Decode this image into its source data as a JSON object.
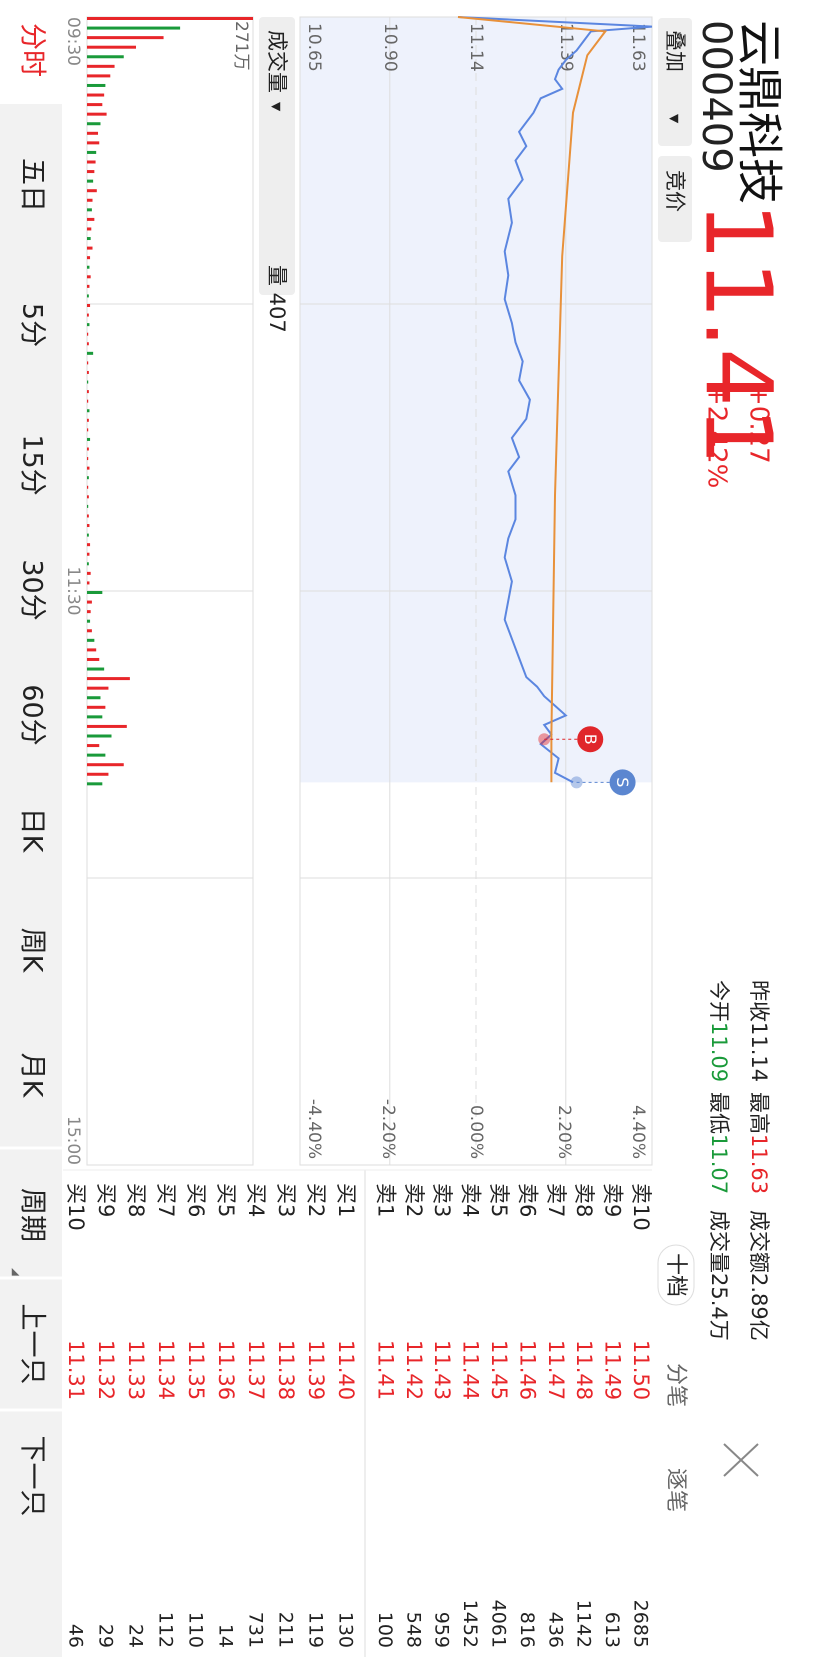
{
  "header": {
    "name": "云鼎科技",
    "code": "000409",
    "price": "11.41",
    "change": "+0.27",
    "change_pct": "+2.42%"
  },
  "stats": [
    {
      "label": "昨收",
      "value": "11.14",
      "color": "#222222"
    },
    {
      "label": "最高",
      "value": "11.63",
      "color": "#e8262a"
    },
    {
      "label": "成交额",
      "value": "2.89亿",
      "color": "#222222"
    },
    {
      "label": "今开",
      "value": "11.09",
      "color": "#1a9a3a"
    },
    {
      "label": "最低",
      "value": "11.07",
      "color": "#1a9a3a"
    },
    {
      "label": "成交量",
      "value": "25.4万",
      "color": "#222222"
    }
  ],
  "controls": {
    "overlay": "叠加",
    "auction": "竞价",
    "volume": "成交量",
    "volume_value": "量 407"
  },
  "chart_data": [
    {
      "type": "line",
      "ylim": [
        10.65,
        11.63
      ],
      "yticks": [
        11.63,
        11.39,
        11.14,
        {
          "value": 10.9,
          "label": "10.90"
        },
        10.65
      ],
      "y2lim": [
        -4.4,
        4.4
      ],
      "y2ticks": [
        {
          "value": 4.4,
          "label": "4.40%"
        },
        {
          "value": 2.2,
          "label": "2.20%"
        },
        {
          "value": 0,
          "label": "0.00%"
        },
        {
          "value": -2.2,
          "label": "-2.20%"
        },
        {
          "value": -4.4,
          "label": "-4.40%"
        }
      ],
      "xlim": [
        0,
        240
      ],
      "xticks": [
        {
          "value": 0,
          "label": "09:30"
        },
        {
          "value": 120,
          "label": "11:30"
        },
        {
          "value": 240,
          "label": "15:00"
        }
      ],
      "grid": true,
      "series": [
        {
          "color": "#5b86e0",
          "x": [
            0,
            2,
            3,
            5,
            7,
            9,
            11,
            13,
            15,
            17,
            20,
            24,
            27,
            30,
            34,
            38,
            43,
            49,
            54,
            59,
            64,
            68,
            72,
            76,
            80,
            84,
            88,
            92,
            95,
            100,
            105,
            109,
            113,
            118,
            122,
            126,
            130,
            134,
            138,
            140,
            142,
            144,
            146,
            148,
            150,
            152,
            155,
            158,
            160
          ],
          "values": [
            11.09,
            11.63,
            11.46,
            11.44,
            11.42,
            11.39,
            11.37,
            11.36,
            11.38,
            11.32,
            11.3,
            11.26,
            11.28,
            11.25,
            11.27,
            11.23,
            11.24,
            11.22,
            11.23,
            11.22,
            11.24,
            11.25,
            11.27,
            11.26,
            11.29,
            11.28,
            11.24,
            11.26,
            11.23,
            11.25,
            11.25,
            11.23,
            11.22,
            11.24,
            11.23,
            11.22,
            11.24,
            11.26,
            11.28,
            11.31,
            11.33,
            11.36,
            11.39,
            11.33,
            11.35,
            11.32,
            11.37,
            11.36,
            11.41
          ]
        },
        {
          "color": "#e8913a",
          "x": [
            0,
            3,
            8,
            20,
            50,
            100,
            150,
            160
          ],
          "values": [
            11.09,
            11.5,
            11.45,
            11.41,
            11.38,
            11.36,
            11.35,
            11.35
          ]
        }
      ],
      "annotations": [
        {
          "label": "B",
          "x": 151,
          "y": 11.33,
          "color": "#e0262a"
        },
        {
          "label": "S",
          "x": 160,
          "y": 11.42,
          "color": "#5b86d0"
        }
      ]
    },
    {
      "type": "bar",
      "ylim": [
        0,
        271
      ],
      "yticks": [
        {
          "value": 271,
          "label": "271万"
        }
      ],
      "xlim": [
        0,
        240
      ],
      "x": [
        0,
        2,
        4,
        6,
        8,
        10,
        12,
        14,
        16,
        18,
        20,
        22,
        24,
        26,
        28,
        30,
        32,
        34,
        36,
        38,
        40,
        42,
        44,
        46,
        48,
        50,
        52,
        54,
        56,
        58,
        60,
        62,
        64,
        66,
        68,
        70,
        72,
        74,
        76,
        78,
        80,
        82,
        84,
        86,
        88,
        90,
        92,
        94,
        96,
        98,
        100,
        102,
        104,
        106,
        108,
        110,
        112,
        114,
        116,
        118,
        120,
        122,
        124,
        126,
        128,
        130,
        132,
        134,
        136,
        138,
        140,
        142,
        144,
        146,
        148,
        150,
        152,
        154,
        156,
        158,
        160
      ],
      "values": [
        271,
        152,
        125,
        80,
        60,
        45,
        38,
        30,
        28,
        25,
        32,
        22,
        18,
        20,
        15,
        14,
        12,
        10,
        16,
        9,
        8,
        12,
        7,
        6,
        9,
        5,
        4,
        6,
        4,
        3,
        5,
        3,
        4,
        2,
        3,
        10,
        2,
        3,
        2,
        3,
        2,
        4,
        3,
        2,
        5,
        3,
        2,
        4,
        3,
        2,
        3,
        2,
        3,
        4,
        3,
        5,
        4,
        3,
        6,
        4,
        25,
        8,
        6,
        5,
        8,
        12,
        15,
        20,
        28,
        70,
        35,
        22,
        30,
        25,
        65,
        40,
        20,
        30,
        60,
        35,
        25
      ],
      "colors": [
        "#e8262a",
        "#1a9a3a",
        "#e8262a",
        "#e8262a",
        "#1a9a3a",
        "#e8262a",
        "#e8262a",
        "#1a9a3a",
        "#e8262a",
        "#e8262a",
        "#e8262a",
        "#1a9a3a",
        "#e8262a",
        "#e8262a",
        "#1a9a3a",
        "#e8262a",
        "#e8262a",
        "#1a9a3a",
        "#e8262a",
        "#e8262a",
        "#1a9a3a",
        "#e8262a",
        "#e8262a",
        "#1a9a3a",
        "#e8262a",
        "#e8262a",
        "#1a9a3a",
        "#e8262a",
        "#e8262a",
        "#1a9a3a",
        "#e8262a",
        "#e8262a",
        "#1a9a3a",
        "#e8262a",
        "#e8262a",
        "#1a9a3a",
        "#e8262a",
        "#e8262a",
        "#1a9a3a",
        "#e8262a",
        "#e8262a",
        "#1a9a3a",
        "#e8262a",
        "#e8262a",
        "#1a9a3a",
        "#e8262a",
        "#e8262a",
        "#e8262a",
        "#1a9a3a",
        "#e8262a",
        "#e8262a",
        "#1a9a3a",
        "#e8262a",
        "#e8262a",
        "#1a9a3a",
        "#e8262a",
        "#e8262a",
        "#1a9a3a",
        "#e8262a",
        "#e8262a",
        "#1a9a3a",
        "#e8262a",
        "#e8262a",
        "#1a9a3a",
        "#e8262a",
        "#1a9a3a",
        "#e8262a",
        "#e8262a",
        "#1a9a3a",
        "#e8262a",
        "#e8262a",
        "#1a9a3a",
        "#e8262a",
        "#1a9a3a",
        "#e8262a",
        "#1a9a3a",
        "#e8262a",
        "#1a9a3a",
        "#e8262a",
        "#e8262a",
        "#1a9a3a"
      ]
    }
  ],
  "order_book": {
    "tabs": [
      "十档",
      "分笔",
      "逐笔"
    ],
    "asks": [
      {
        "label": "卖10",
        "price": "11.50",
        "volume": 2685
      },
      {
        "label": "卖9",
        "price": "11.49",
        "volume": 613
      },
      {
        "label": "卖8",
        "price": "11.48",
        "volume": 1142
      },
      {
        "label": "卖7",
        "price": "11.47",
        "volume": 436
      },
      {
        "label": "卖6",
        "price": "11.46",
        "volume": 816
      },
      {
        "label": "卖5",
        "price": "11.45",
        "volume": 4061
      },
      {
        "label": "卖4",
        "price": "11.44",
        "volume": 1452
      },
      {
        "label": "卖3",
        "price": "11.43",
        "volume": 959
      },
      {
        "label": "卖2",
        "price": "11.42",
        "volume": 548
      },
      {
        "label": "卖1",
        "price": "11.41",
        "volume": 100
      }
    ],
    "bids": [
      {
        "label": "买1",
        "price": "11.40",
        "volume": 130
      },
      {
        "label": "买2",
        "price": "11.39",
        "volume": 119
      },
      {
        "label": "买3",
        "price": "11.38",
        "volume": 211
      },
      {
        "label": "买4",
        "price": "11.37",
        "volume": 731
      },
      {
        "label": "买5",
        "price": "11.36",
        "volume": 14
      },
      {
        "label": "买6",
        "price": "11.35",
        "volume": 110
      },
      {
        "label": "买7",
        "price": "11.34",
        "volume": 112
      },
      {
        "label": "买8",
        "price": "11.33",
        "volume": 24
      },
      {
        "label": "买9",
        "price": "11.32",
        "volume": 29
      },
      {
        "label": "买10",
        "price": "11.31",
        "volume": 46
      }
    ]
  },
  "period_tabs": [
    "分时",
    "五日",
    "5分",
    "15分",
    "30分",
    "60分",
    "日K",
    "周K",
    "月K"
  ],
  "footer": {
    "period": "周期",
    "prev": "上一只",
    "next": "下一只"
  }
}
